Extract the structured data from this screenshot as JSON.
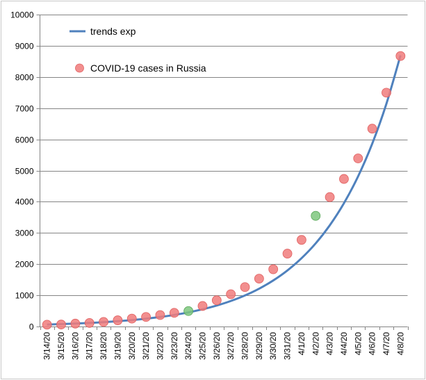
{
  "chart_data": {
    "type": "scatter",
    "title": "",
    "xlabel": "",
    "ylabel": "",
    "ylim": [
      0,
      10000
    ],
    "y_ticks": [
      0,
      1000,
      2000,
      3000,
      4000,
      5000,
      6000,
      7000,
      8000,
      9000,
      10000
    ],
    "grid": true,
    "legend_position": "top-left",
    "categories": [
      "3/14/20",
      "3/15/20",
      "3/16/20",
      "3/17/20",
      "3/18/20",
      "3/19/20",
      "3/20/20",
      "3/21/20",
      "3/22/20",
      "3/23/20",
      "3/24/20",
      "3/25/20",
      "3/26/20",
      "3/27/20",
      "3/28/20",
      "3/29/20",
      "3/30/20",
      "3/31/20",
      "4/1/20",
      "4/2/20",
      "4/3/20",
      "4/4/20",
      "4/5/20",
      "4/6/20",
      "4/7/20",
      "4/8/20"
    ],
    "series": [
      {
        "name": "trends exp",
        "kind": "line",
        "color": "#4f81bd",
        "values": [
          62,
          77,
          94,
          114,
          139,
          169,
          206,
          251,
          306,
          372,
          453,
          552,
          672,
          818,
          996,
          1213,
          1477,
          1798,
          2190,
          2666,
          3247,
          3953,
          4814,
          5862,
          7138,
          8692
        ]
      },
      {
        "name": "COVID-19 cases in Russia",
        "kind": "scatter",
        "color": "#f07b7b",
        "values": [
          59,
          63,
          93,
          114,
          147,
          199,
          253,
          306,
          367,
          438,
          495,
          658,
          840,
          1036,
          1264,
          1534,
          1836,
          2337,
          2777,
          3548,
          4149,
          4731,
          5389,
          6343,
          7497,
          8672
        ],
        "highlight_color": "#7ec77e",
        "highlight_categories": [
          "3/24/20",
          "4/2/20"
        ]
      }
    ]
  }
}
